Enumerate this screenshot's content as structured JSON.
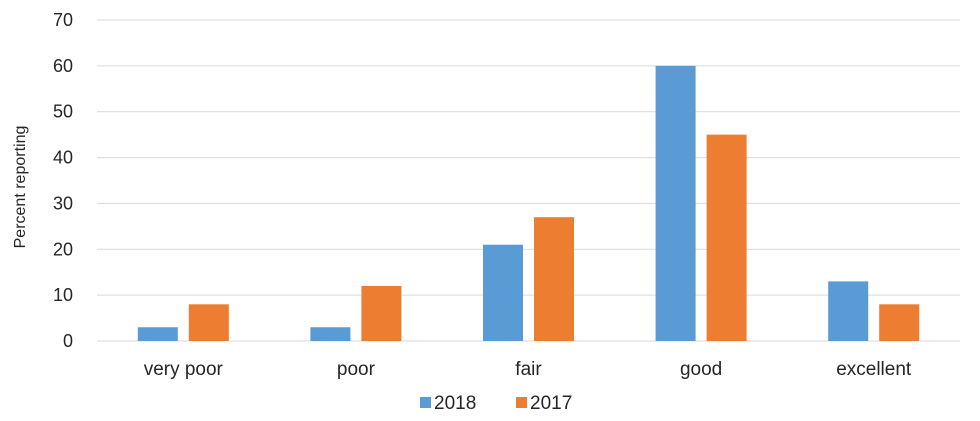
{
  "chart_data": {
    "type": "bar",
    "categories": [
      "very poor",
      "poor",
      "fair",
      "good",
      "excellent"
    ],
    "series": [
      {
        "name": "2018",
        "values": [
          3,
          3,
          21,
          60,
          13
        ],
        "color": "#5B9BD5"
      },
      {
        "name": "2017",
        "values": [
          8,
          12,
          27,
          45,
          8
        ],
        "color": "#ED7D31"
      }
    ],
    "ylabel": "Percent reporting",
    "xlabel": "",
    "ylim": [
      0,
      70
    ],
    "yticks": [
      0,
      10,
      20,
      30,
      40,
      50,
      60,
      70
    ],
    "grid": true,
    "legend": "bottom-center"
  }
}
